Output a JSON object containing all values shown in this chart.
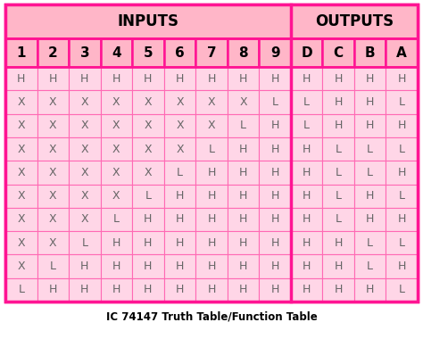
{
  "title": "IC 74147 Truth Table/Function Table",
  "header_inputs": "INPUTS",
  "header_outputs": "OUTPUTS",
  "col_headers": [
    "1",
    "2",
    "3",
    "4",
    "5",
    "6",
    "7",
    "8",
    "9",
    "D",
    "C",
    "B",
    "A"
  ],
  "rows": [
    [
      "H",
      "H",
      "H",
      "H",
      "H",
      "H",
      "H",
      "H",
      "H",
      "H",
      "H",
      "H",
      "H"
    ],
    [
      "X",
      "X",
      "X",
      "X",
      "X",
      "X",
      "X",
      "X",
      "L",
      "L",
      "H",
      "H",
      "L"
    ],
    [
      "X",
      "X",
      "X",
      "X",
      "X",
      "X",
      "X",
      "L",
      "H",
      "L",
      "H",
      "H",
      "H"
    ],
    [
      "X",
      "X",
      "X",
      "X",
      "X",
      "X",
      "L",
      "H",
      "H",
      "H",
      "L",
      "L",
      "L"
    ],
    [
      "X",
      "X",
      "X",
      "X",
      "X",
      "L",
      "H",
      "H",
      "H",
      "H",
      "L",
      "L",
      "H"
    ],
    [
      "X",
      "X",
      "X",
      "X",
      "L",
      "H",
      "H",
      "H",
      "H",
      "H",
      "L",
      "H",
      "L"
    ],
    [
      "X",
      "X",
      "X",
      "L",
      "H",
      "H",
      "H",
      "H",
      "H",
      "H",
      "L",
      "H",
      "H"
    ],
    [
      "X",
      "X",
      "L",
      "H",
      "H",
      "H",
      "H",
      "H",
      "H",
      "H",
      "H",
      "L",
      "L"
    ],
    [
      "X",
      "L",
      "H",
      "H",
      "H",
      "H",
      "H",
      "H",
      "H",
      "H",
      "H",
      "L",
      "H"
    ],
    [
      "L",
      "H",
      "H",
      "H",
      "H",
      "H",
      "H",
      "H",
      "H",
      "H",
      "H",
      "H",
      "L"
    ]
  ],
  "n_input_cols": 9,
  "n_output_cols": 4,
  "n_total_cols": 13,
  "pink_light": "#FFD6E7",
  "pink_header": "#FFB6C8",
  "pink_cell": "#FFD6E7",
  "border_thick": "#FF1493",
  "border_thin": "#FF69B4",
  "text_dark": "#666666",
  "text_header": "#000000",
  "title_fontsize": 8.5,
  "header_fontsize": 12,
  "col_header_fontsize": 11,
  "cell_fontsize": 9
}
